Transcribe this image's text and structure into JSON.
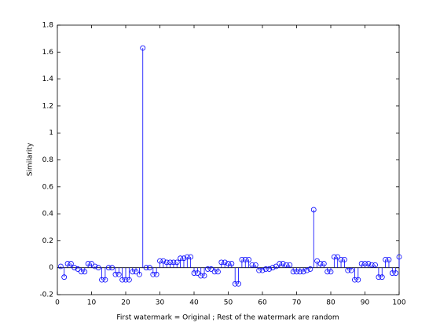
{
  "chart_data": {
    "type": "stem",
    "xlabel": "First watermark = Original ; Rest of the watermark are random",
    "ylabel": "Similarity",
    "color": "#0000ff",
    "xlim": [
      0,
      100
    ],
    "xticks": [
      0,
      10,
      20,
      30,
      40,
      50,
      60,
      70,
      80,
      90,
      100
    ],
    "ylim": [
      -0.2,
      1.8
    ],
    "yticks": [
      -0.2,
      0,
      0.2,
      0.4,
      0.6,
      0.8,
      1,
      1.2,
      1.4,
      1.6,
      1.8
    ],
    "x": [
      1,
      2,
      3,
      4,
      5,
      6,
      7,
      8,
      9,
      10,
      11,
      12,
      13,
      14,
      15,
      16,
      17,
      18,
      19,
      20,
      21,
      22,
      23,
      24,
      25,
      26,
      27,
      28,
      29,
      30,
      31,
      32,
      33,
      34,
      35,
      36,
      37,
      38,
      39,
      40,
      41,
      42,
      43,
      44,
      45,
      46,
      47,
      48,
      49,
      50,
      51,
      52,
      53,
      54,
      55,
      56,
      57,
      58,
      59,
      60,
      61,
      62,
      63,
      64,
      65,
      66,
      67,
      68,
      69,
      70,
      71,
      72,
      73,
      74,
      75,
      76,
      77,
      78,
      79,
      80,
      81,
      82,
      83,
      84,
      85,
      86,
      87,
      88,
      89,
      90,
      91,
      92,
      93,
      94,
      95,
      96,
      97,
      98,
      99,
      100
    ],
    "values": [
      0.01,
      -0.07,
      0.03,
      0.03,
      0.0,
      -0.01,
      -0.03,
      -0.03,
      0.03,
      0.03,
      0.01,
      0.0,
      -0.09,
      -0.09,
      0.0,
      0.0,
      -0.05,
      -0.05,
      -0.09,
      -0.09,
      -0.09,
      -0.03,
      -0.03,
      -0.05,
      1.63,
      0.0,
      0.0,
      -0.05,
      -0.05,
      0.05,
      0.05,
      0.04,
      0.04,
      0.04,
      0.04,
      0.07,
      0.07,
      0.08,
      0.08,
      -0.04,
      -0.04,
      -0.06,
      -0.06,
      -0.01,
      -0.01,
      -0.03,
      -0.03,
      0.04,
      0.04,
      0.03,
      0.03,
      -0.12,
      -0.12,
      0.06,
      0.06,
      0.06,
      0.02,
      0.02,
      -0.02,
      -0.02,
      -0.01,
      -0.01,
      0.0,
      0.01,
      0.03,
      0.03,
      0.02,
      0.02,
      -0.03,
      -0.03,
      -0.03,
      -0.03,
      -0.02,
      -0.01,
      0.43,
      0.05,
      0.03,
      0.03,
      -0.03,
      -0.03,
      0.08,
      0.08,
      0.06,
      0.06,
      -0.02,
      -0.02,
      -0.09,
      -0.09,
      0.03,
      0.03,
      0.03,
      0.02,
      0.02,
      -0.07,
      -0.07,
      0.06,
      0.06,
      -0.04,
      -0.04,
      0.08
    ]
  }
}
